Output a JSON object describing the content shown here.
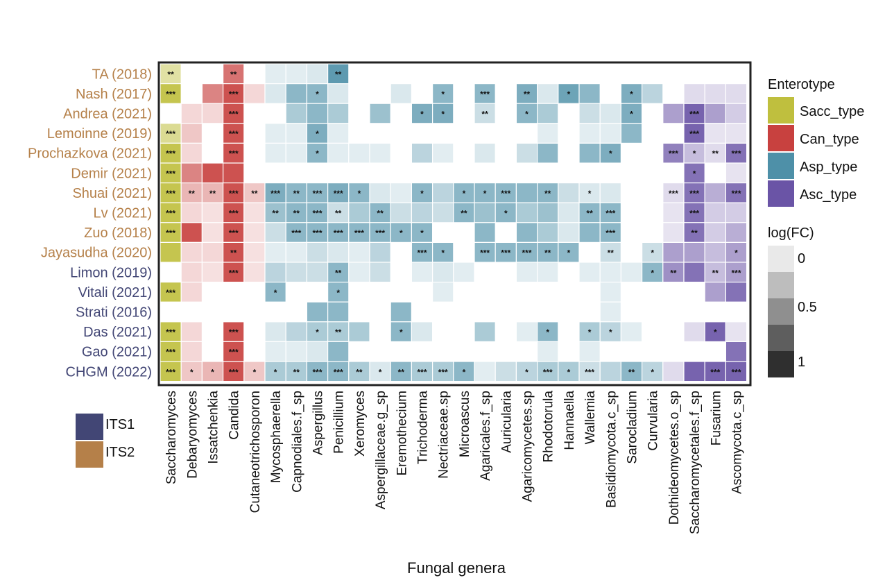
{
  "chart_data": {
    "type": "heatmap",
    "xlabel": "Fungal genera",
    "columns": [
      "Saccharomyces",
      "Debaryomyces",
      "Issatchenkia",
      "Candida",
      "Cutaneotrichosporon",
      "Mycosphaerella",
      "Capnodiales.f_sp",
      "Aspergillus",
      "Penicillium",
      "Xeromyces",
      "Aspergillaceae.g_sp",
      "Eremothecium",
      "Trichoderma",
      "Nectriaceae.sp",
      "Microascus",
      "Agaricales.f_sp",
      "Auricularia",
      "Agaricomycetes.sp",
      "Rhodotorula",
      "Hannaella",
      "Wallemia",
      "Basidiomycota.c_sp",
      "Sarocladium",
      "Curvularia",
      "Dothideomycetes.o_sp",
      "Saccharomycetales.f_sp",
      "Fusarium",
      "Ascomycota.c_sp"
    ],
    "rows": [
      {
        "label": "TA (2018)",
        "method": "ITS2"
      },
      {
        "label": "Nash (2017)",
        "method": "ITS2"
      },
      {
        "label": "Andrea (2021)",
        "method": "ITS2"
      },
      {
        "label": "Lemoinne (2019)",
        "method": "ITS2"
      },
      {
        "label": "Prochazkova (2021)",
        "method": "ITS2"
      },
      {
        "label": "Demir (2021)",
        "method": "ITS2"
      },
      {
        "label": "Shuai (2021)",
        "method": "ITS2"
      },
      {
        "label": "Lv (2021)",
        "method": "ITS2"
      },
      {
        "label": "Zuo (2018)",
        "method": "ITS2"
      },
      {
        "label": "Jayasudha (2020)",
        "method": "ITS2"
      },
      {
        "label": "Limon (2019)",
        "method": "ITS1"
      },
      {
        "label": "Vitali (2021)",
        "method": "ITS1"
      },
      {
        "label": "Strati (2016)",
        "method": "ITS1"
      },
      {
        "label": "Das (2021)",
        "method": "ITS1"
      },
      {
        "label": "Gao (2021)",
        "method": "ITS1"
      },
      {
        "label": "CHGM (2022)",
        "method": "ITS1"
      }
    ],
    "enterotype_of_column": [
      "Sacc_type",
      "Can_type",
      "Can_type",
      "Can_type",
      "Can_type",
      "Asp_type",
      "Asp_type",
      "Asp_type",
      "Asp_type",
      "Asp_type",
      "Asp_type",
      "Asp_type",
      "Asp_type",
      "Asp_type",
      "Asp_type",
      "Asp_type",
      "Asp_type",
      "Asp_type",
      "Asp_type",
      "Asp_type",
      "Asp_type",
      "Asp_type",
      "Asp_type",
      "Asp_type",
      "Asc_type",
      "Asc_type",
      "Asc_type",
      "Asc_type"
    ],
    "log_fc_matrix": [
      [
        0.4,
        0,
        0,
        0.7,
        0,
        0.05,
        0.05,
        0.1,
        0.9,
        0,
        0,
        0,
        0,
        0,
        0,
        0,
        0,
        0,
        0,
        0,
        0,
        0,
        0,
        0,
        0,
        0,
        0,
        0
      ],
      [
        0.9,
        0,
        0.6,
        0.9,
        0.1,
        0.1,
        0.6,
        0.6,
        0.1,
        0,
        0,
        0.1,
        0,
        0.6,
        0,
        0.6,
        0,
        0.7,
        0.1,
        0.8,
        0.6,
        0,
        0.7,
        0.3,
        0,
        0.1,
        0.1,
        0.1
      ],
      [
        0,
        0.1,
        0.1,
        0.9,
        0,
        0,
        0.4,
        0.6,
        0.4,
        0,
        0.5,
        0,
        0.7,
        0.7,
        0,
        0.2,
        0,
        0.6,
        0.4,
        0,
        0.2,
        0.1,
        0.7,
        0,
        0.5,
        0.9,
        0.5,
        0.2
      ],
      [
        0.5,
        0.2,
        0,
        0.9,
        0,
        0.05,
        0.05,
        0.7,
        0.05,
        0,
        0,
        0,
        0,
        0,
        0,
        0,
        0,
        0,
        0.05,
        0,
        0.05,
        0.05,
        0.6,
        0,
        0,
        0.9,
        0.05,
        0.05
      ],
      [
        0.9,
        0.1,
        0,
        0.9,
        0,
        0.05,
        0.05,
        0.6,
        0.05,
        0.05,
        0.05,
        0,
        0.3,
        0.05,
        0,
        0.1,
        0,
        0.2,
        0.6,
        0,
        0.6,
        0.7,
        0,
        0,
        0.7,
        0.3,
        0.1,
        0.8
      ],
      [
        0.9,
        0.6,
        0.9,
        0.9,
        0,
        0,
        0,
        0,
        0,
        0,
        0,
        0,
        0,
        0,
        0,
        0,
        0,
        0,
        0,
        0,
        0,
        0,
        0,
        0,
        0,
        0.8,
        0,
        0.05
      ],
      [
        0.9,
        0.3,
        0.3,
        0.9,
        0.2,
        0.7,
        0.6,
        0.6,
        0.7,
        0.6,
        0.1,
        0.05,
        0.6,
        0.3,
        0.6,
        0.6,
        0.6,
        0.6,
        0.6,
        0.2,
        0.1,
        0.1,
        0,
        0,
        0.1,
        0.8,
        0.4,
        0.8
      ],
      [
        0.9,
        0.1,
        0.05,
        0.9,
        0.05,
        0.5,
        0.6,
        0.6,
        0.2,
        0.4,
        0.6,
        0.2,
        0.3,
        0.2,
        0.6,
        0.5,
        0.6,
        0.4,
        0.5,
        0.1,
        0.6,
        0.6,
        0,
        0,
        0.05,
        0.8,
        0.2,
        0.2
      ],
      [
        0.9,
        0.9,
        0.05,
        0.9,
        0.05,
        0.2,
        0.6,
        0.6,
        0.6,
        0.6,
        0.6,
        0.6,
        0.6,
        0,
        0,
        0.6,
        0,
        0.6,
        0.4,
        0.1,
        0.6,
        0.6,
        0,
        0,
        0.05,
        0.8,
        0.2,
        0.4
      ],
      [
        0.9,
        0.1,
        0.1,
        0.9,
        0.05,
        0.05,
        0.05,
        0.2,
        0.1,
        0.05,
        0.3,
        0,
        0.6,
        0.6,
        0,
        0.6,
        0.6,
        0.6,
        0.6,
        0.6,
        0,
        0.2,
        0,
        0.2,
        0.5,
        0.5,
        0.3,
        0.5
      ],
      [
        0,
        0.1,
        0.05,
        0.9,
        0.05,
        0.3,
        0.2,
        0.2,
        0.6,
        0.05,
        0.2,
        0,
        0.05,
        0.1,
        0.05,
        0,
        0,
        0.05,
        0.05,
        0,
        0.05,
        0.05,
        0.05,
        0.6,
        0.6,
        0.8,
        0.3,
        0.5
      ],
      [
        0.9,
        0.1,
        0,
        0,
        0,
        0.6,
        0,
        0,
        0.6,
        0,
        0,
        0,
        0,
        0.05,
        0,
        0,
        0,
        0,
        0,
        0,
        0,
        0.05,
        0,
        0,
        0,
        0,
        0.5,
        0.8
      ],
      [
        0,
        0,
        0,
        0,
        0,
        0,
        0,
        0.6,
        0.6,
        0,
        0,
        0.6,
        0,
        0,
        0,
        0,
        0,
        0,
        0,
        0,
        0,
        0.05,
        0,
        0,
        0,
        0,
        0,
        0
      ],
      [
        0.9,
        0.1,
        0,
        0.9,
        0,
        0.1,
        0.3,
        0.4,
        0.4,
        0.4,
        0,
        0.6,
        0.1,
        0,
        0,
        0.4,
        0,
        0.05,
        0.6,
        0,
        0.4,
        0.3,
        0.05,
        0,
        0,
        0.1,
        0.9,
        0.05
      ],
      [
        0.9,
        0.1,
        0,
        0.9,
        0,
        0.05,
        0.05,
        0.1,
        0.6,
        0,
        0,
        0,
        0,
        0,
        0,
        0,
        0,
        0,
        0.05,
        0,
        0.05,
        0,
        0,
        0,
        0,
        0,
        0,
        0.8
      ],
      [
        0.9,
        0.2,
        0.3,
        0.9,
        0.2,
        0.4,
        0.4,
        0.6,
        0.6,
        0.4,
        0.1,
        0.6,
        0.4,
        0.4,
        0.6,
        0.05,
        0.2,
        0.3,
        0.4,
        0.4,
        0.2,
        0.3,
        0.6,
        0.3,
        0.1,
        0.9,
        0.9,
        0.9
      ]
    ],
    "significance_matrix": [
      [
        "**",
        "",
        "",
        "**",
        "",
        "",
        "",
        "",
        "**",
        "",
        "",
        "",
        "",
        "",
        "",
        "",
        "",
        "",
        "",
        "",
        "",
        "",
        "",
        "",
        "",
        "",
        "",
        ""
      ],
      [
        "***",
        "",
        "",
        "***",
        "",
        "",
        "",
        "*",
        "",
        "",
        "",
        "",
        "",
        "*",
        "",
        "***",
        "",
        "**",
        "",
        "*",
        "",
        "",
        "*",
        "",
        "",
        "",
        "",
        ""
      ],
      [
        "",
        "",
        "",
        "***",
        "",
        "",
        "",
        "",
        "",
        "",
        "",
        "",
        "*",
        "*",
        "",
        "**",
        "",
        "*",
        "",
        "",
        "",
        "",
        "*",
        "",
        "",
        "***",
        "",
        ""
      ],
      [
        "***",
        "",
        "",
        "***",
        "",
        "",
        "",
        "*",
        "",
        "",
        "",
        "",
        "",
        "",
        "",
        "",
        "",
        "",
        "",
        "",
        "",
        "",
        "",
        "",
        "",
        "***",
        "",
        ""
      ],
      [
        "***",
        "",
        "",
        "***",
        "",
        "",
        "",
        "*",
        "",
        "",
        "",
        "",
        "",
        "",
        "",
        "",
        "",
        "",
        "",
        "",
        "",
        "*",
        "",
        "",
        "***",
        "*",
        "**",
        "***"
      ],
      [
        "***",
        "",
        "",
        "",
        "",
        "",
        "",
        "",
        "",
        "",
        "",
        "",
        "",
        "",
        "",
        "",
        "",
        "",
        "",
        "",
        "",
        "",
        "",
        "",
        "",
        "*",
        "",
        ""
      ],
      [
        "***",
        "**",
        "**",
        "***",
        "**",
        "***",
        "**",
        "***",
        "***",
        "*",
        "",
        "",
        "*",
        "",
        "*",
        "*",
        "***",
        "",
        "**",
        "",
        "*",
        "",
        "",
        "",
        "***",
        "***",
        "",
        "***"
      ],
      [
        "***",
        "",
        "",
        "***",
        "",
        "**",
        "**",
        "***",
        "**",
        "",
        "**",
        "",
        "",
        "",
        "**",
        "",
        "*",
        "",
        "",
        "",
        "**",
        "***",
        "",
        "",
        "",
        "***",
        "",
        ""
      ],
      [
        "***",
        "",
        "",
        "***",
        "",
        "",
        "***",
        "***",
        "***",
        "***",
        "***",
        "*",
        "*",
        "",
        "",
        "",
        "",
        "",
        "",
        "",
        "",
        "***",
        "",
        "",
        "",
        "**",
        "",
        ""
      ],
      [
        "",
        "",
        "",
        "**",
        "",
        "",
        "",
        "",
        "",
        "",
        "",
        "",
        "***",
        "*",
        "",
        "***",
        "***",
        "***",
        "**",
        "*",
        "",
        "**",
        "",
        "*",
        "",
        "",
        "",
        "*"
      ],
      [
        "",
        "",
        "",
        "***",
        "",
        "",
        "",
        "",
        "**",
        "",
        "",
        "",
        "",
        "",
        "",
        "",
        "",
        "",
        "",
        "",
        "",
        "",
        "",
        "*",
        "**",
        "",
        "**",
        "***"
      ],
      [
        "***",
        "",
        "",
        "",
        "",
        "*",
        "",
        "",
        "*",
        "",
        "",
        "",
        "",
        "",
        "",
        "",
        "",
        "",
        "",
        "",
        "",
        "",
        "",
        "",
        "",
        "",
        "",
        ""
      ],
      [
        "",
        "",
        "",
        "",
        "",
        "",
        "",
        "",
        "",
        "",
        "",
        "",
        "",
        "",
        "",
        "",
        "",
        "",
        "",
        "",
        "",
        "",
        "",
        "",
        "",
        "",
        "",
        ""
      ],
      [
        "***",
        "",
        "",
        "***",
        "",
        "",
        "",
        "*",
        "**",
        "",
        "",
        "*",
        "",
        "",
        "",
        "",
        "",
        "",
        "*",
        "",
        "*",
        "*",
        "",
        "",
        "",
        "",
        "*",
        ""
      ],
      [
        "***",
        "",
        "",
        "***",
        "",
        "",
        "",
        "",
        "",
        "",
        "",
        "",
        "",
        "",
        "",
        "",
        "",
        "",
        "",
        "",
        "",
        "",
        "",
        "",
        "",
        "",
        "",
        ""
      ],
      [
        "***",
        "*",
        "*",
        "***",
        "*",
        "*",
        "**",
        "***",
        "***",
        "**",
        "*",
        "**",
        "***",
        "***",
        "*",
        "",
        "",
        "*",
        "***",
        "*",
        "***",
        "",
        "**",
        "*",
        "",
        "",
        "***",
        "***"
      ]
    ],
    "legend_enterotype": {
      "title": "Enterotype",
      "items": [
        {
          "label": "Sacc_type",
          "color": "#BFBF3E"
        },
        {
          "label": "Can_type",
          "color": "#C8413F"
        },
        {
          "label": "Asp_type",
          "color": "#4E90A8"
        },
        {
          "label": "Asc_type",
          "color": "#6A54A6"
        }
      ]
    },
    "legend_logfc": {
      "title": "log(FC)",
      "ticks": [
        "0",
        "0.5",
        "1"
      ],
      "steps": [
        0,
        0.25,
        0.5,
        0.75,
        1.0
      ]
    },
    "legend_method": {
      "items": [
        {
          "label": "ITS1",
          "color": "#424675"
        },
        {
          "label": "ITS2",
          "color": "#B58049"
        }
      ]
    }
  }
}
